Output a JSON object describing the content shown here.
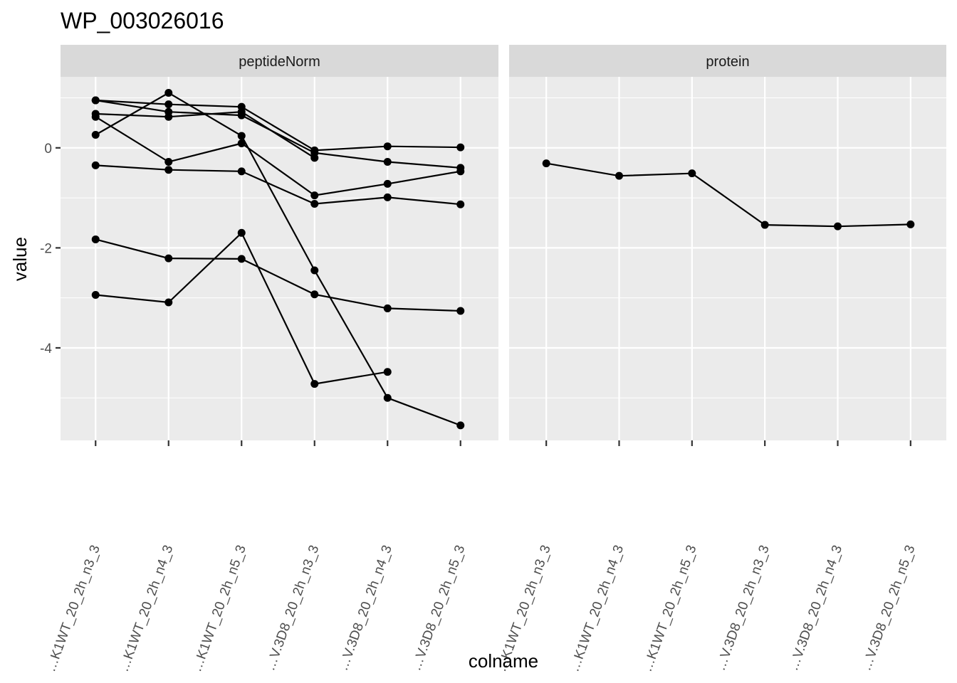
{
  "chart_data": {
    "type": "line",
    "title": "WP_003026016",
    "xlabel": "colname",
    "ylabel": "value",
    "ylim": [
      -5.85,
      1.42
    ],
    "y_ticks": [
      0,
      -2,
      -4
    ],
    "y_tick_labels": [
      "0",
      "-2",
      "-4"
    ],
    "grid": true,
    "categories": [
      "…K1WT_20_2h_n3_3",
      "…K1WT_20_2h_n4_3",
      "…K1WT_20_2h_n5_3",
      "…V.3D8_20_2h_n3_3",
      "…V.3D8_20_2h_n4_3",
      "…V.3D8_20_2h_n5_3"
    ],
    "panels": [
      {
        "label": "peptideNorm",
        "series": [
          {
            "values": [
              0.95,
              0.72,
              0.65,
              -0.1,
              -0.28,
              -0.4
            ]
          },
          {
            "values": [
              0.95,
              0.87,
              0.82,
              -0.05,
              0.03,
              0.01
            ]
          },
          {
            "values": [
              0.68,
              0.62,
              0.72,
              -0.2,
              null,
              null
            ]
          },
          {
            "values": [
              0.26,
              1.1,
              0.24,
              -2.45,
              -5.0,
              -5.55
            ]
          },
          {
            "values": [
              0.62,
              -0.28,
              0.09,
              -0.95,
              -0.72,
              -0.47
            ]
          },
          {
            "values": [
              -0.35,
              -0.44,
              -0.47,
              -1.12,
              -0.99,
              -1.13
            ]
          },
          {
            "values": [
              -1.83,
              -2.21,
              -2.22,
              -2.93,
              -3.21,
              -3.26
            ]
          },
          {
            "values": [
              -2.94,
              -3.09,
              -1.7,
              -4.72,
              -4.48,
              null
            ]
          }
        ]
      },
      {
        "label": "protein",
        "series": [
          {
            "values": [
              -0.31,
              -0.56,
              -0.51,
              -1.54,
              -1.57,
              -1.53
            ]
          }
        ]
      }
    ]
  }
}
